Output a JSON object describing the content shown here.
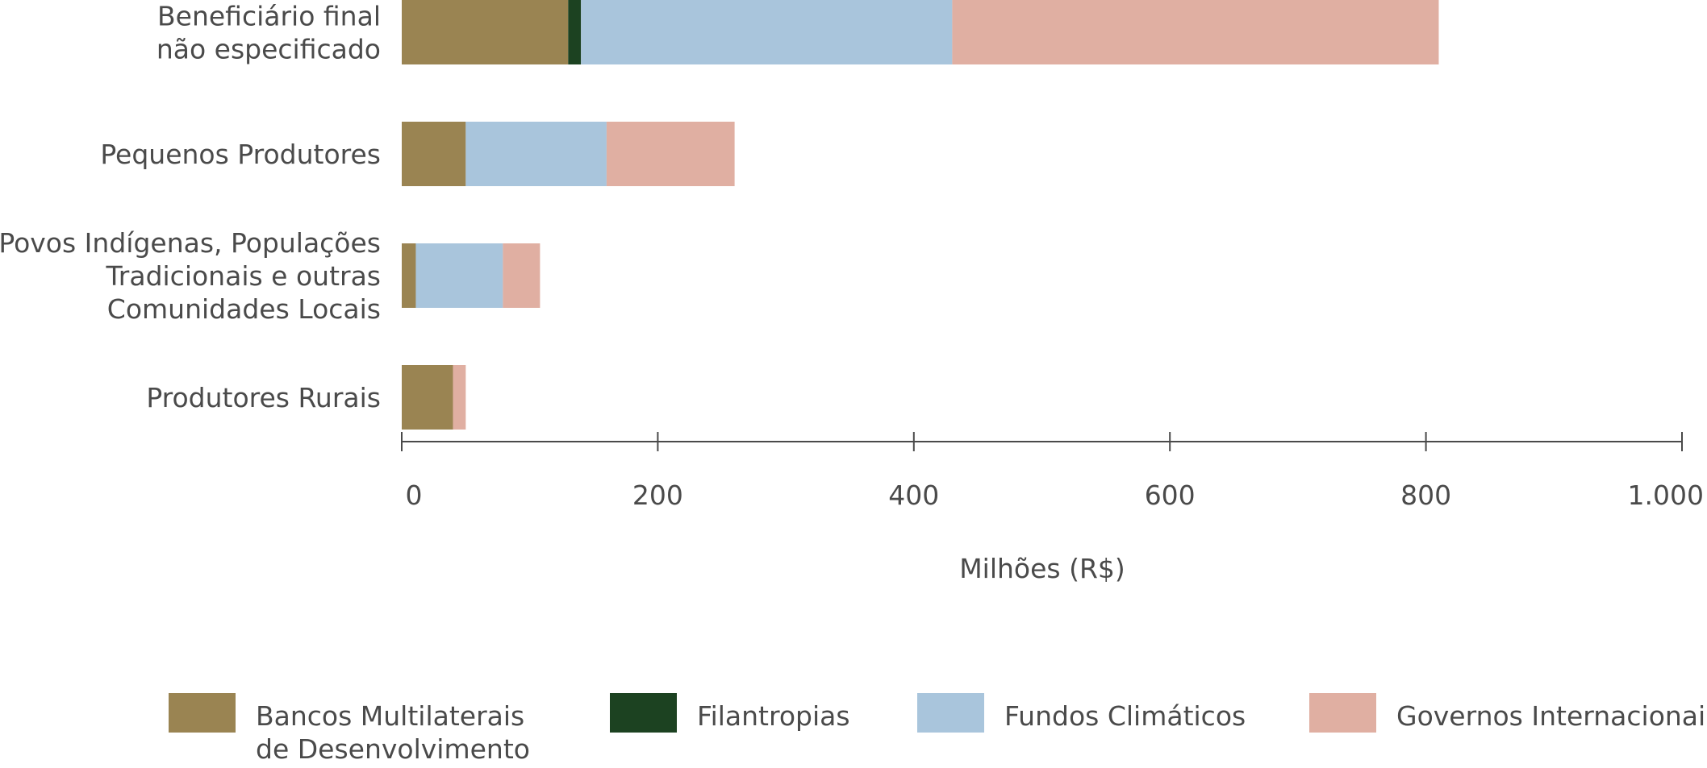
{
  "chart_data": {
    "type": "bar",
    "orientation": "horizontal",
    "stacked": true,
    "categories": [
      [
        "Beneficiário final",
        "não especificado"
      ],
      [
        "Pequenos Produtores"
      ],
      [
        "Povos Indígenas, Populações",
        "Tradicionais e outras",
        "Comunidades Locais"
      ],
      [
        "Produtores Rurais"
      ]
    ],
    "series": [
      {
        "name": [
          "Bancos Multilaterais",
          "de Desenvolvimento"
        ],
        "color": "#9a8452",
        "values": [
          130,
          50,
          11,
          40
        ]
      },
      {
        "name": [
          "Filantropias"
        ],
        "color": "#1c4221",
        "values": [
          10,
          0,
          0,
          0
        ]
      },
      {
        "name": [
          "Fundos Climáticos"
        ],
        "color": "#a9c5dc",
        "values": [
          290,
          110,
          68,
          0
        ]
      },
      {
        "name": [
          "Governos Internacionais"
        ],
        "color": "#e0afa2",
        "values": [
          380,
          100,
          29,
          10
        ]
      }
    ],
    "xlabel": "Milhões (R$)",
    "xlim": [
      0,
      1000
    ],
    "xticks": [
      0,
      200,
      400,
      600,
      800,
      1000
    ],
    "xtick_labels": [
      "0",
      "200",
      "400",
      "600",
      "800",
      "1.000"
    ],
    "grid": false,
    "legend_position": "bottom"
  }
}
